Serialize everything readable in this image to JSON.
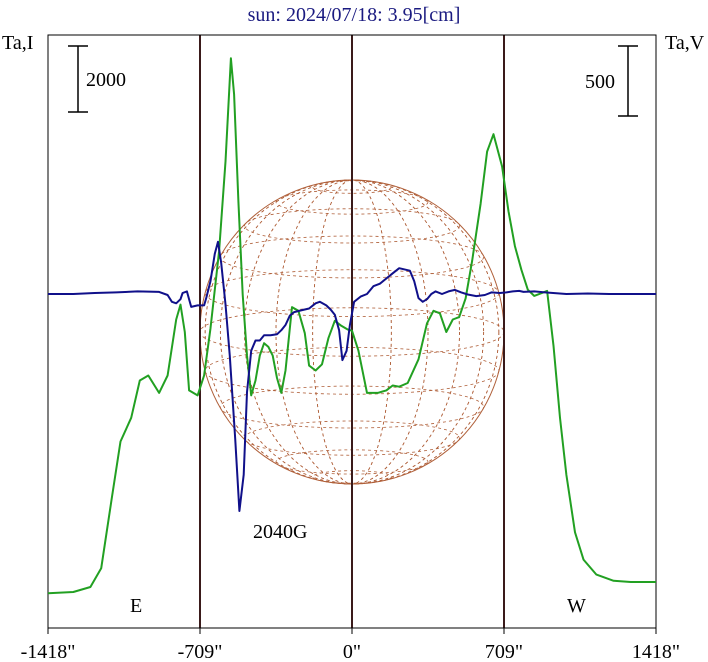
{
  "chart_data": {
    "type": "line",
    "title": "sun: 2024/07/18: 3.95[cm]",
    "ylabel_left": "Ta,I",
    "ylabel_right": "Ta,V",
    "scale_bar_left": "2000",
    "scale_bar_right": "500",
    "east_label": "E",
    "west_label": "W",
    "annotation": "2040G",
    "x_ticks": [
      {
        "value": -1418,
        "label": "-1418\""
      },
      {
        "value": -709,
        "label": "-709\""
      },
      {
        "value": 0,
        "label": "0\""
      },
      {
        "value": 709,
        "label": "709\""
      },
      {
        "value": 1418,
        "label": "1418\""
      }
    ],
    "xlim": [
      -1418,
      1418
    ],
    "vertical_markers": [
      -709,
      0,
      709
    ],
    "colors": {
      "stokes_i": "#22a022",
      "stokes_v": "#10108a",
      "grid": "#b0603a",
      "frame": "#000000",
      "markers": "#3a1a1a",
      "title": "#1a1a80"
    },
    "series": [
      {
        "key": "stokes_i",
        "points": [
          [
            -1418,
            -50
          ],
          [
            -1300,
            -40
          ],
          [
            -1220,
            0
          ],
          [
            -1170,
            150
          ],
          [
            -1120,
            720
          ],
          [
            -1080,
            1170
          ],
          [
            -1030,
            1360
          ],
          [
            -990,
            1660
          ],
          [
            -950,
            1700
          ],
          [
            -900,
            1560
          ],
          [
            -860,
            1700
          ],
          [
            -820,
            2150
          ],
          [
            -800,
            2270
          ],
          [
            -780,
            2050
          ],
          [
            -760,
            1580
          ],
          [
            -720,
            1540
          ],
          [
            -690,
            1700
          ],
          [
            -660,
            2080
          ],
          [
            -620,
            2700
          ],
          [
            -590,
            3420
          ],
          [
            -565,
            4250
          ],
          [
            -550,
            3960
          ],
          [
            -530,
            3100
          ],
          [
            -510,
            2350
          ],
          [
            -490,
            1860
          ],
          [
            -470,
            1540
          ],
          [
            -450,
            1660
          ],
          [
            -430,
            1860
          ],
          [
            -410,
            1960
          ],
          [
            -390,
            1930
          ],
          [
            -370,
            1860
          ],
          [
            -350,
            1680
          ],
          [
            -330,
            1560
          ],
          [
            -310,
            1740
          ],
          [
            -280,
            2250
          ],
          [
            -250,
            2220
          ],
          [
            -220,
            2040
          ],
          [
            -200,
            1780
          ],
          [
            -170,
            1740
          ],
          [
            -140,
            1790
          ],
          [
            -110,
            2000
          ],
          [
            -80,
            2140
          ],
          [
            -50,
            2100
          ],
          [
            -20,
            2070
          ],
          [
            0,
            2060
          ],
          [
            30,
            1900
          ],
          [
            70,
            1560
          ],
          [
            120,
            1560
          ],
          [
            160,
            1580
          ],
          [
            190,
            1620
          ],
          [
            220,
            1610
          ],
          [
            260,
            1640
          ],
          [
            310,
            1830
          ],
          [
            350,
            2120
          ],
          [
            380,
            2220
          ],
          [
            410,
            2200
          ],
          [
            440,
            2050
          ],
          [
            470,
            2150
          ],
          [
            500,
            2170
          ],
          [
            530,
            2320
          ],
          [
            560,
            2620
          ],
          [
            600,
            3080
          ],
          [
            630,
            3500
          ],
          [
            660,
            3640
          ],
          [
            700,
            3380
          ],
          [
            730,
            3020
          ],
          [
            760,
            2740
          ],
          [
            790,
            2550
          ],
          [
            820,
            2390
          ],
          [
            850,
            2340
          ],
          [
            880,
            2360
          ],
          [
            910,
            2380
          ],
          [
            940,
            1940
          ],
          [
            970,
            1360
          ],
          [
            1000,
            900
          ],
          [
            1040,
            440
          ],
          [
            1080,
            220
          ],
          [
            1140,
            100
          ],
          [
            1220,
            50
          ],
          [
            1300,
            40
          ],
          [
            1418,
            40
          ]
        ]
      },
      {
        "key": "stokes_v",
        "points": [
          [
            -1418,
            0
          ],
          [
            -1300,
            0
          ],
          [
            -1200,
            2
          ],
          [
            -1100,
            3
          ],
          [
            -1000,
            5
          ],
          [
            -900,
            4
          ],
          [
            -860,
            -2
          ],
          [
            -840,
            -15
          ],
          [
            -820,
            -18
          ],
          [
            -800,
            -10
          ],
          [
            -790,
            2
          ],
          [
            -770,
            5
          ],
          [
            -750,
            -25
          ],
          [
            -720,
            -22
          ],
          [
            -690,
            -22
          ],
          [
            -680,
            -8
          ],
          [
            -660,
            25
          ],
          [
            -640,
            78
          ],
          [
            -625,
            101
          ],
          [
            -610,
            60
          ],
          [
            -590,
            -20
          ],
          [
            -570,
            -120
          ],
          [
            -545,
            -280
          ],
          [
            -525,
            -420
          ],
          [
            -505,
            -350
          ],
          [
            -490,
            -190
          ],
          [
            -470,
            -110
          ],
          [
            -450,
            -90
          ],
          [
            -430,
            -90
          ],
          [
            -410,
            -80
          ],
          [
            -380,
            -80
          ],
          [
            -350,
            -78
          ],
          [
            -330,
            -70
          ],
          [
            -310,
            -60
          ],
          [
            -290,
            -42
          ],
          [
            -270,
            -35
          ],
          [
            -240,
            -32
          ],
          [
            -200,
            -28
          ],
          [
            -170,
            -18
          ],
          [
            -150,
            -15
          ],
          [
            -120,
            -22
          ],
          [
            -100,
            -30
          ],
          [
            -80,
            -40
          ],
          [
            -60,
            -70
          ],
          [
            -45,
            -128
          ],
          [
            -25,
            -110
          ],
          [
            -10,
            -60
          ],
          [
            10,
            -15
          ],
          [
            40,
            -5
          ],
          [
            70,
            0
          ],
          [
            100,
            15
          ],
          [
            130,
            20
          ],
          [
            160,
            30
          ],
          [
            190,
            40
          ],
          [
            220,
            50
          ],
          [
            250,
            47
          ],
          [
            270,
            45
          ],
          [
            290,
            25
          ],
          [
            310,
            -8
          ],
          [
            330,
            -15
          ],
          [
            350,
            -10
          ],
          [
            370,
            0
          ],
          [
            390,
            5
          ],
          [
            420,
            0
          ],
          [
            450,
            5
          ],
          [
            480,
            8
          ],
          [
            510,
            3
          ],
          [
            540,
            -1
          ],
          [
            580,
            -4
          ],
          [
            620,
            -2
          ],
          [
            650,
            3
          ],
          [
            690,
            2
          ],
          [
            720,
            3
          ],
          [
            750,
            5
          ],
          [
            780,
            6
          ],
          [
            800,
            4
          ],
          [
            850,
            5
          ],
          [
            900,
            3
          ],
          [
            1000,
            0
          ],
          [
            1100,
            1
          ],
          [
            1200,
            0
          ],
          [
            1300,
            0
          ],
          [
            1418,
            0
          ]
        ]
      }
    ]
  }
}
